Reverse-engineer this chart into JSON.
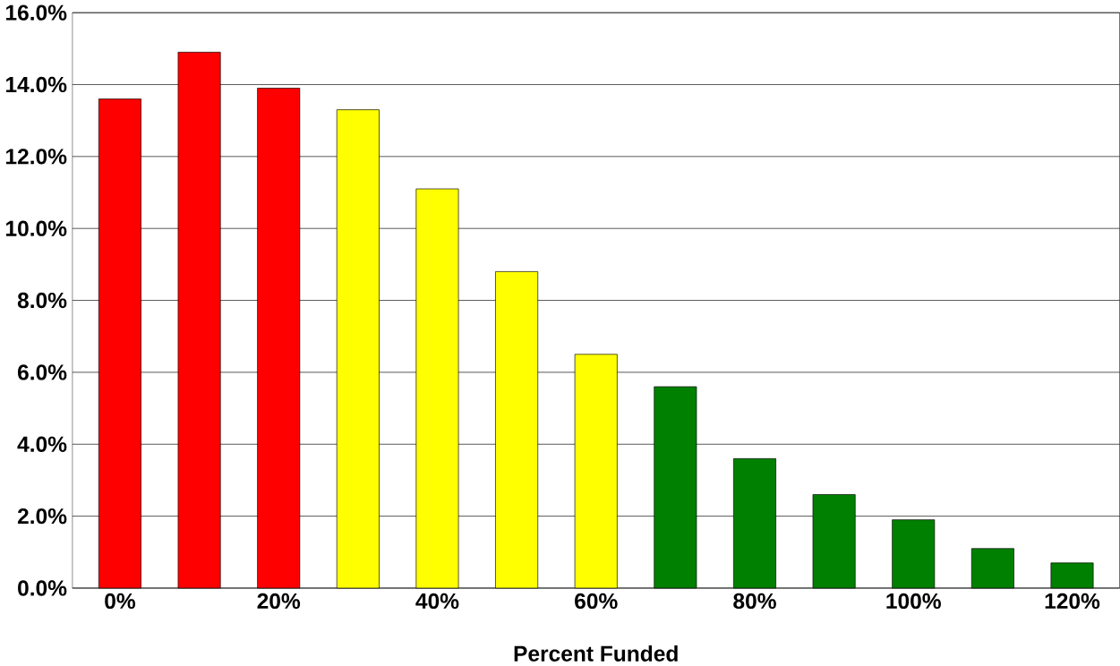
{
  "chart_data": {
    "type": "bar",
    "xlabel": "Percent Funded",
    "categories": [
      "0%",
      null,
      "20%",
      null,
      "40%",
      null,
      "60%",
      null,
      "80%",
      null,
      "100%",
      null,
      "120%"
    ],
    "values": [
      13.6,
      14.9,
      13.9,
      13.3,
      11.1,
      8.8,
      6.5,
      5.6,
      3.6,
      2.6,
      1.9,
      1.1,
      0.7
    ],
    "colors": [
      "#ff0000",
      "#ff0000",
      "#ff0000",
      "#ffff00",
      "#ffff00",
      "#ffff00",
      "#ffff00",
      "#008000",
      "#008000",
      "#008000",
      "#008000",
      "#008000",
      "#008000"
    ],
    "ylim": [
      0,
      16
    ],
    "yticks": [
      {
        "value": 0,
        "label": "0.0%"
      },
      {
        "value": 2,
        "label": "2.0%"
      },
      {
        "value": 4,
        "label": "4.0%"
      },
      {
        "value": 6,
        "label": "6.0%"
      },
      {
        "value": 8,
        "label": "8.0%"
      },
      {
        "value": 10,
        "label": "10.0%"
      },
      {
        "value": 12,
        "label": "12.0%"
      },
      {
        "value": 14,
        "label": "14.0%"
      },
      {
        "value": 16,
        "label": "16.0%"
      }
    ],
    "grid": "y"
  }
}
